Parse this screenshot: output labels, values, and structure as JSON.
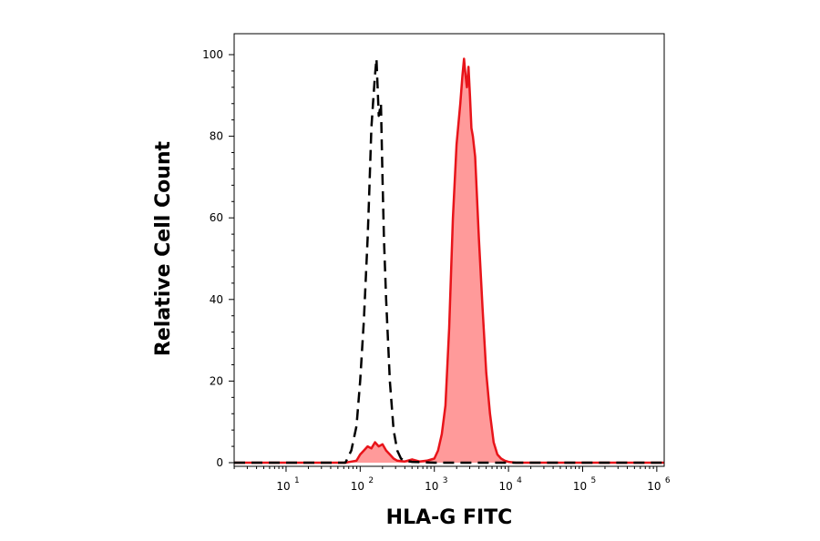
{
  "chart_data": {
    "type": "area",
    "xlabel": "HLA-G FITC",
    "ylabel": "Relative Cell Count",
    "x_scale": "log",
    "xlim": [
      0.3,
      6.1
    ],
    "ylim": [
      0,
      105
    ],
    "grid": false,
    "x_ticks": [
      {
        "base": "10",
        "exp": "1",
        "value": 1
      },
      {
        "base": "10",
        "exp": "2",
        "value": 2
      },
      {
        "base": "10",
        "exp": "3",
        "value": 3
      },
      {
        "base": "10",
        "exp": "4",
        "value": 4
      },
      {
        "base": "10",
        "exp": "5",
        "value": 5
      },
      {
        "base": "10",
        "exp": "6",
        "value": 6
      }
    ],
    "y_ticks": [
      "0",
      "20",
      "40",
      "60",
      "80",
      "100"
    ],
    "series": [
      {
        "style": "dashed",
        "color": "#000000",
        "x": [
          0.3,
          1.0,
          1.8,
          1.88,
          1.95,
          2.0,
          2.05,
          2.1,
          2.12,
          2.15,
          2.18,
          2.2,
          2.22,
          2.25,
          2.28,
          2.3,
          2.32,
          2.35,
          2.4,
          2.45,
          2.5,
          2.55,
          2.6,
          2.7,
          3.0,
          6.1
        ],
        "y": [
          0,
          0,
          0,
          3,
          9,
          20,
          35,
          55,
          65,
          82,
          90,
          95,
          99,
          85,
          88,
          70,
          55,
          40,
          20,
          8,
          3,
          1,
          0.5,
          0.2,
          0,
          0
        ]
      },
      {
        "style": "filled",
        "color": "#e8141a",
        "fill": "#ff9a9a",
        "x": [
          0.3,
          1.0,
          1.8,
          1.95,
          2.0,
          2.05,
          2.1,
          2.15,
          2.2,
          2.25,
          2.3,
          2.35,
          2.4,
          2.45,
          2.5,
          2.6,
          2.7,
          2.8,
          2.9,
          3.0,
          3.05,
          3.1,
          3.15,
          3.2,
          3.25,
          3.3,
          3.35,
          3.38,
          3.4,
          3.42,
          3.44,
          3.46,
          3.48,
          3.5,
          3.52,
          3.55,
          3.6,
          3.65,
          3.7,
          3.75,
          3.8,
          3.85,
          3.9,
          3.95,
          4.0,
          4.1,
          4.2,
          6.1
        ],
        "y": [
          0,
          0,
          0,
          0.5,
          2,
          3,
          4,
          3.5,
          5,
          4,
          4.5,
          3,
          2,
          1,
          0.5,
          0.3,
          0.8,
          0.3,
          0.5,
          1,
          3,
          7,
          14,
          33,
          60,
          78,
          88,
          95,
          99,
          95,
          92,
          97,
          90,
          82,
          80,
          75,
          55,
          38,
          22,
          12,
          5,
          2,
          1,
          0.5,
          0.2,
          0,
          0,
          0
        ]
      }
    ]
  }
}
